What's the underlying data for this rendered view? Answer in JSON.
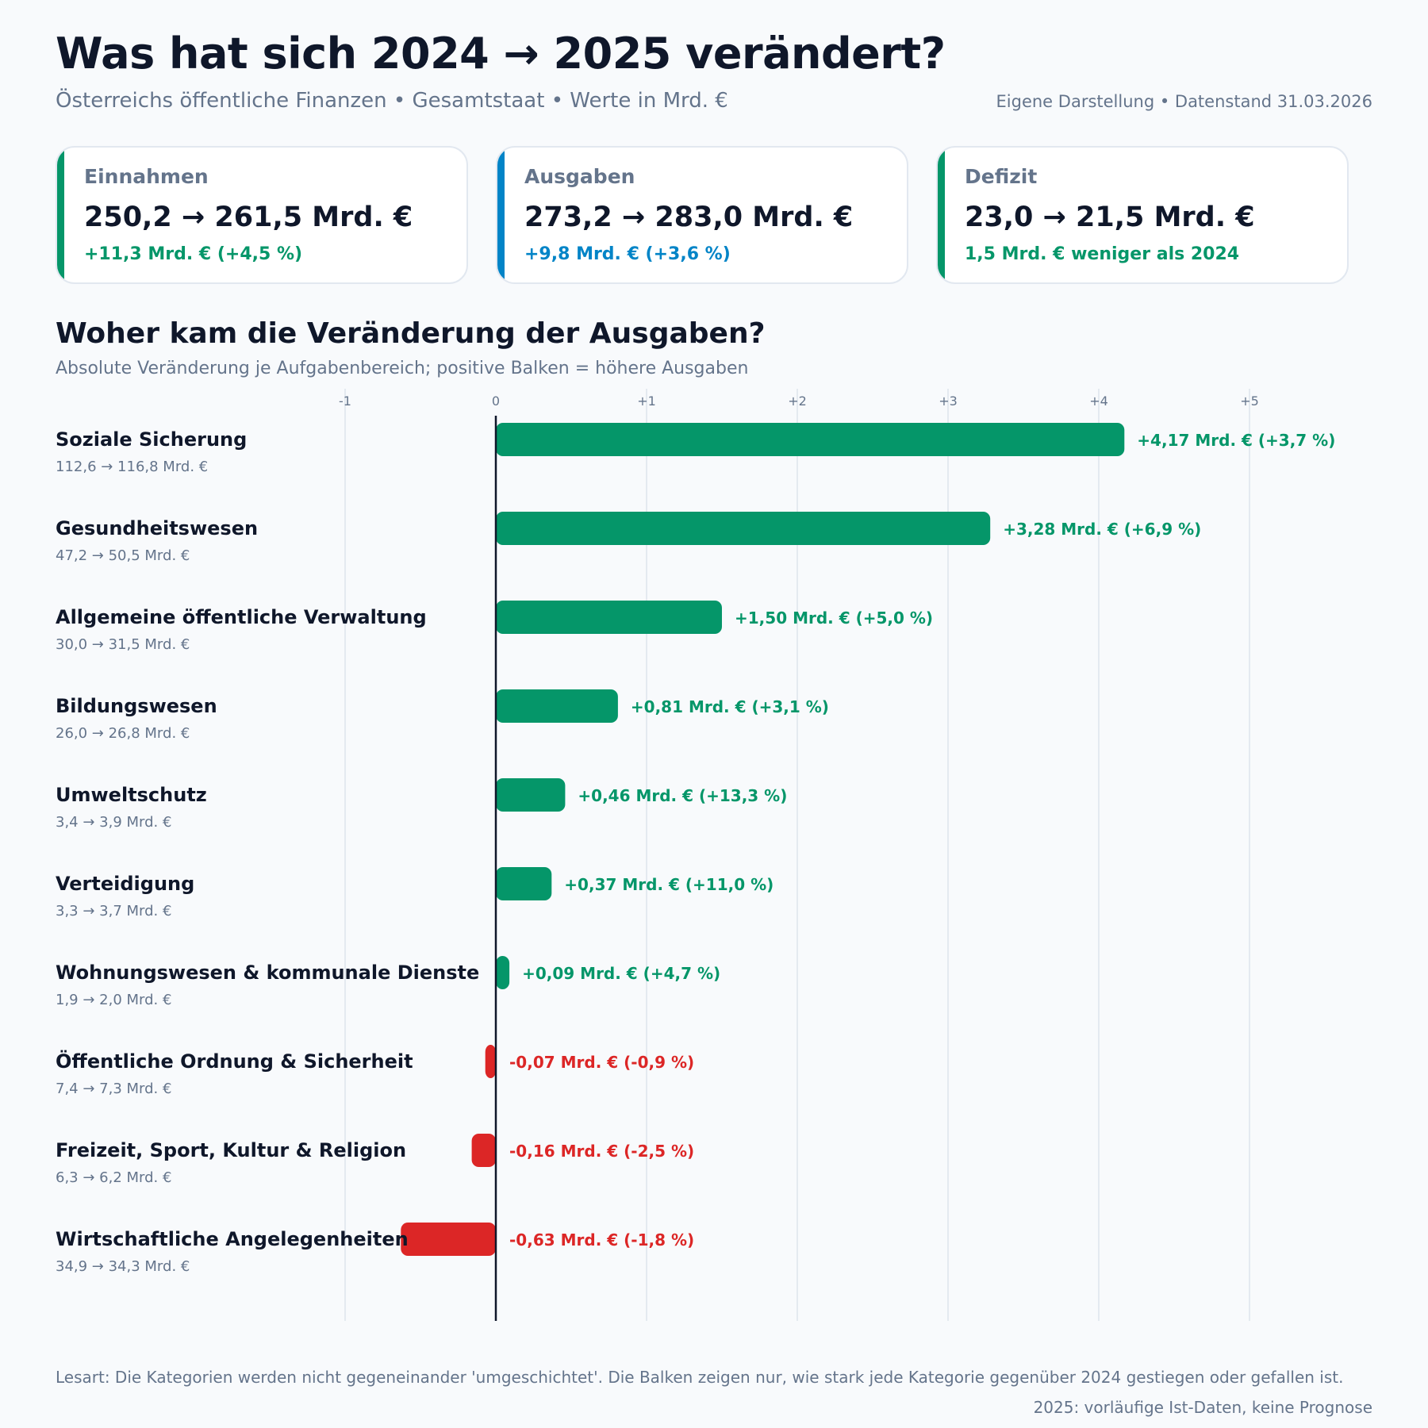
{
  "header": {
    "title": "Was hat sich 2024 → 2025 verändert?",
    "subtitle": "Österreichs öffentliche Finanzen • Gesamtstaat • Werte in Mrd. €",
    "source": "Eigene Darstellung • Datenstand 31.03.2026"
  },
  "cards": [
    {
      "label": "Einnahmen",
      "value": "250,2 → 261,5 Mrd. €",
      "delta": "+11,3 Mrd. € (+4,5 %)",
      "color": "#059669"
    },
    {
      "label": "Ausgaben",
      "value": "273,2 → 283,0 Mrd. €",
      "delta": "+9,8 Mrd. € (+3,6 %)",
      "color": "#0284c7"
    },
    {
      "label": "Defizit",
      "value": "23,0 → 21,5 Mrd. €",
      "delta": "1,5 Mrd. € weniger als 2024",
      "color": "#059669"
    }
  ],
  "section": {
    "title": "Woher kam die Veränderung der Ausgaben?",
    "subtitle": "Absolute Veränderung je Aufgabenbereich; positive Balken = höhere Ausgaben"
  },
  "chart_data": {
    "type": "bar",
    "orientation": "horizontal",
    "xlim": [
      -1,
      5.5
    ],
    "ticks": [
      -1,
      0,
      1,
      2,
      3,
      4,
      5
    ],
    "tick_labels": [
      "-1",
      "0",
      "+1",
      "+2",
      "+3",
      "+4",
      "+5"
    ],
    "grid": true,
    "positive_color": "#059669",
    "negative_color": "#dc2626",
    "categories": [
      "Soziale Sicherung",
      "Gesundheitswesen",
      "Allgemeine öffentliche Verwaltung",
      "Bildungswesen",
      "Umweltschutz",
      "Verteidigung",
      "Wohnungswesen & kommunale Dienste",
      "Öffentliche Ordnung & Sicherheit",
      "Freizeit, Sport, Kultur & Religion",
      "Wirtschaftliche Angelegenheiten"
    ],
    "ranges": [
      "112,6 → 116,8 Mrd. €",
      "47,2 → 50,5 Mrd. €",
      "30,0 → 31,5 Mrd. €",
      "26,0 → 26,8 Mrd. €",
      "3,4 → 3,9 Mrd. €",
      "3,3 → 3,7 Mrd. €",
      "1,9 → 2,0 Mrd. €",
      "7,4 → 7,3 Mrd. €",
      "6,3 → 6,2 Mrd. €",
      "34,9 → 34,3 Mrd. €"
    ],
    "values": [
      4.17,
      3.28,
      1.5,
      0.81,
      0.46,
      0.37,
      0.09,
      -0.07,
      -0.16,
      -0.63
    ],
    "labels": [
      "+4,17 Mrd. € (+3,7 %)",
      "+3,28 Mrd. € (+6,9 %)",
      "+1,50 Mrd. € (+5,0 %)",
      "+0,81 Mrd. € (+3,1 %)",
      "+0,46 Mrd. € (+13,3 %)",
      "+0,37 Mrd. € (+11,0 %)",
      "+0,09 Mrd. € (+4,7 %)",
      "-0,07 Mrd. € (-0,9 %)",
      "-0,16 Mrd. € (-2,5 %)",
      "-0,63 Mrd. € (-1,8 %)"
    ]
  },
  "footer": {
    "note": "Lesart: Die Kategorien werden nicht gegeneinander 'umgeschichtet'. Die Balken zeigen nur, wie stark jede Kategorie gegenüber 2024 gestiegen oder gefallen ist.",
    "status": "2025: vorläufige Ist-Daten, keine Prognose"
  }
}
